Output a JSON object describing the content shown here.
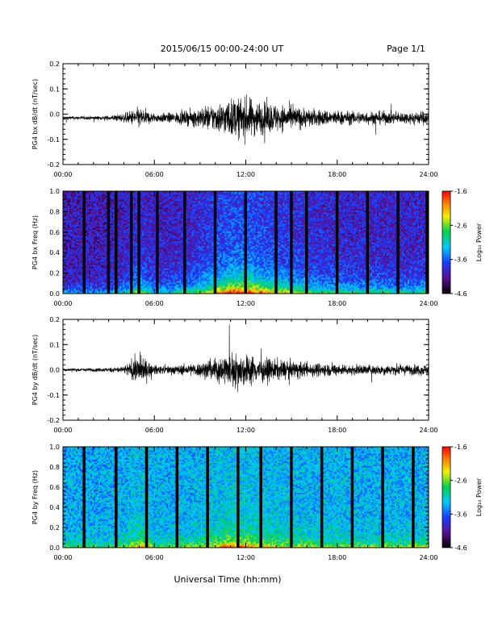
{
  "header": {
    "title": "2015/06/15  00:00-24:00 UT",
    "page_label": "Page 1/1"
  },
  "footer": {
    "xlabel": "Universal Time (hh:mm)"
  },
  "colorbar": {
    "label": "Log₁₀ Power",
    "ticks": [
      "-1.6",
      "-2.6",
      "-3.6",
      "-4.6"
    ]
  },
  "chart_data": [
    {
      "type": "line",
      "name": "bx-dbdt",
      "ylabel": "PG4 bx dB/dt (nT/sec)",
      "xlabel": "",
      "xlim": [
        0,
        24
      ],
      "ylim": [
        -0.2,
        0.2
      ],
      "x_ticks": [
        "00:00",
        "06:00",
        "12:00",
        "18:00",
        "24:00"
      ],
      "y_ticks": [
        "0.2",
        "0.1",
        "0.0",
        "-0.1",
        "-0.2"
      ],
      "envelope": {
        "hours": [
          0,
          1,
          2,
          3,
          4,
          5,
          6,
          7,
          8,
          9,
          10,
          11,
          12,
          13,
          14,
          15,
          16,
          17,
          18,
          19,
          20,
          21,
          22,
          23,
          24
        ],
        "amplitude": [
          0.012,
          0.012,
          0.012,
          0.015,
          0.03,
          0.07,
          0.03,
          0.035,
          0.045,
          0.07,
          0.095,
          0.13,
          0.14,
          0.11,
          0.095,
          0.08,
          0.065,
          0.055,
          0.05,
          0.045,
          0.045,
          0.045,
          0.04,
          0.04,
          0.05
        ]
      }
    },
    {
      "type": "heatmap",
      "name": "bx-freq",
      "ylabel": "PG4 bx Freq (Hz)",
      "xlabel": "",
      "xlim": [
        0,
        24
      ],
      "ylim": [
        0,
        1.0
      ],
      "zlim": [
        -4.6,
        -1.6
      ],
      "x_ticks": [
        "00:00",
        "06:00",
        "12:00",
        "18:00",
        "24:00"
      ],
      "y_ticks": [
        "1.0",
        "0.8",
        "0.6",
        "0.4",
        "0.2",
        "0.0"
      ],
      "gap_hours": [
        1.4,
        3.0,
        3.5,
        4.5,
        5.0,
        6.2,
        8.0,
        10.0,
        12.0,
        14.0,
        15.0,
        16.0,
        18.0,
        20.0,
        22.0,
        23.9
      ]
    },
    {
      "type": "line",
      "name": "by-dbdt",
      "ylabel": "PG4 by dB/dt (nT/sec)",
      "xlabel": "",
      "xlim": [
        0,
        24
      ],
      "ylim": [
        -0.2,
        0.2
      ],
      "x_ticks": [
        "00:00",
        "06:00",
        "12:00",
        "18:00",
        "24:00"
      ],
      "y_ticks": [
        "0.2",
        "0.1",
        "0.0",
        "-0.1",
        "-0.2"
      ],
      "envelope": {
        "hours": [
          0,
          1,
          2,
          3,
          4,
          5,
          6,
          7,
          8,
          9,
          10,
          11,
          12,
          13,
          14,
          15,
          16,
          17,
          18,
          19,
          20,
          21,
          22,
          23,
          24
        ],
        "amplitude": [
          0.01,
          0.012,
          0.012,
          0.015,
          0.025,
          0.1,
          0.03,
          0.03,
          0.035,
          0.05,
          0.08,
          0.12,
          0.11,
          0.08,
          0.07,
          0.06,
          0.05,
          0.045,
          0.04,
          0.035,
          0.035,
          0.035,
          0.035,
          0.035,
          0.04
        ]
      }
    },
    {
      "type": "heatmap",
      "name": "by-freq",
      "ylabel": "PG4 by Freq (Hz)",
      "xlabel": "",
      "xlim": [
        0,
        24
      ],
      "ylim": [
        0,
        1.0
      ],
      "zlim": [
        -4.6,
        -1.6
      ],
      "x_ticks": [
        "00:00",
        "06:00",
        "12:00",
        "18:00",
        "24:00"
      ],
      "y_ticks": [
        "1.0",
        "0.8",
        "0.6",
        "0.4",
        "0.2",
        "0.0"
      ],
      "gap_hours": [
        1.4,
        3.5,
        5.5,
        7.5,
        9.5,
        11.5,
        13.0,
        15.0,
        17.0,
        19.0,
        21.0,
        23.0
      ]
    }
  ]
}
